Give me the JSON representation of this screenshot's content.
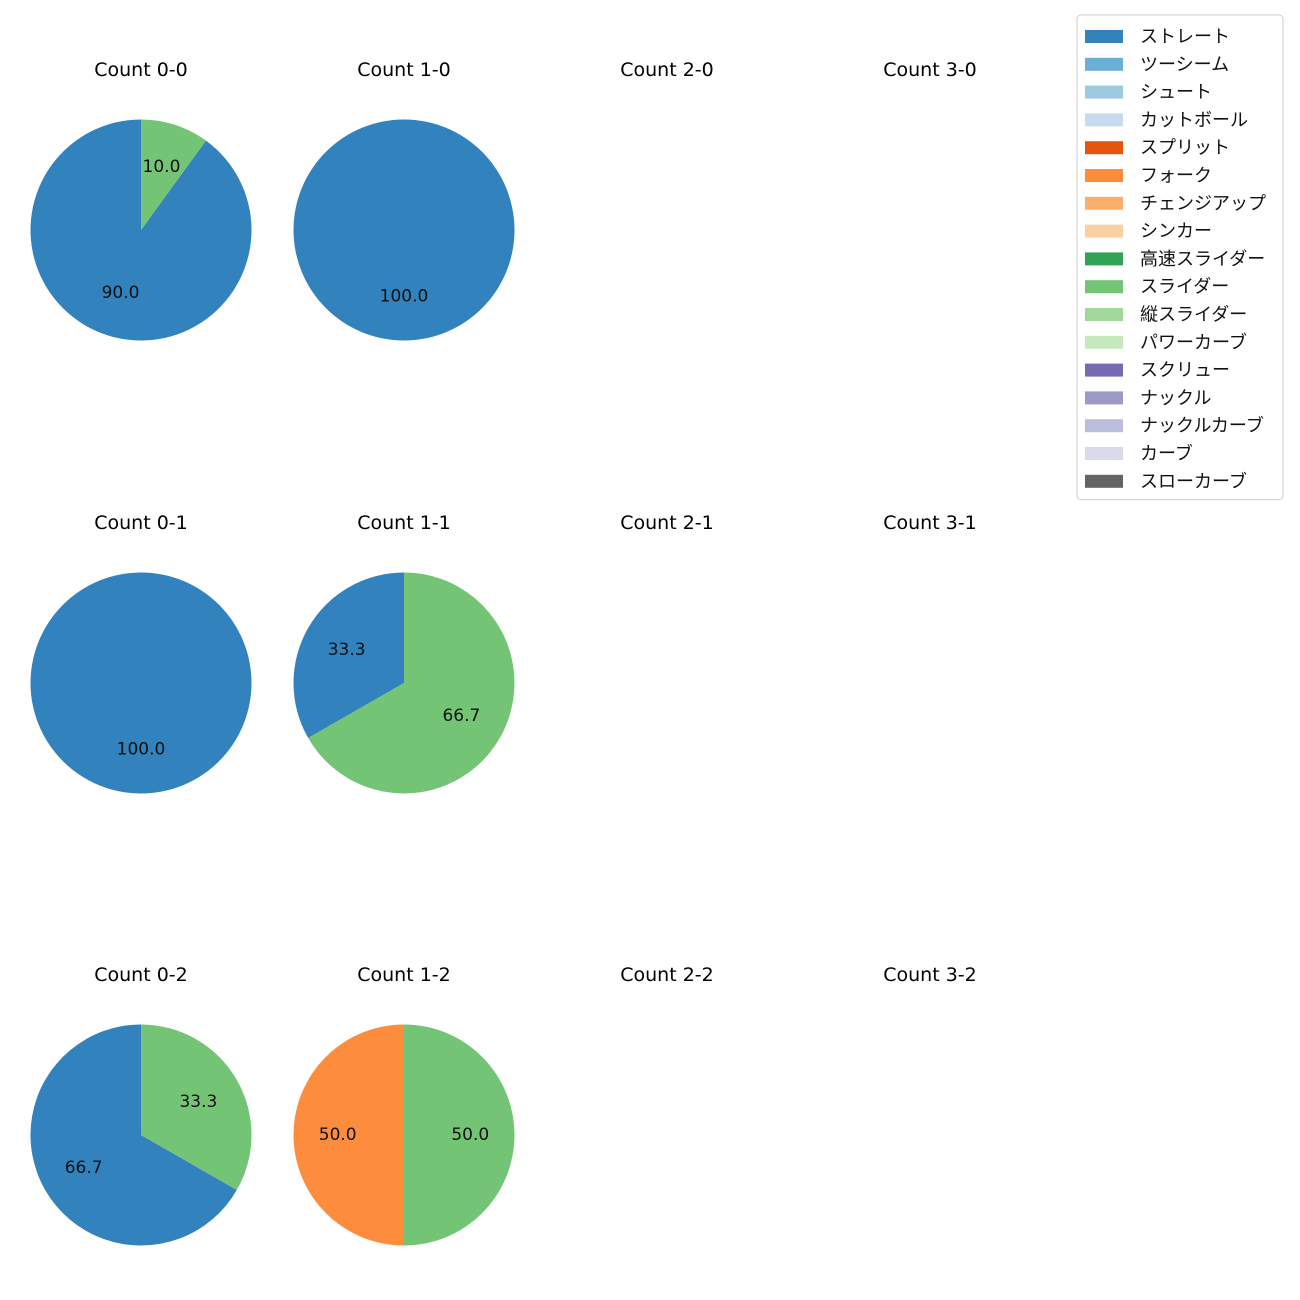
{
  "chart_data": {
    "type": "pie",
    "legend": {
      "placement": "top-right",
      "entries": [
        {
          "name": "ストレート",
          "color": "#3182bd"
        },
        {
          "name": "ツーシーム",
          "color": "#6baed6"
        },
        {
          "name": "シュート",
          "color": "#9ecae1"
        },
        {
          "name": "カットボール",
          "color": "#c6dbef"
        },
        {
          "name": "スプリット",
          "color": "#e6550d"
        },
        {
          "name": "フォーク",
          "color": "#fd8d3c"
        },
        {
          "name": "チェンジアップ",
          "color": "#fdae6b"
        },
        {
          "name": "シンカー",
          "color": "#fdd0a2"
        },
        {
          "name": "高速スライダー",
          "color": "#31a354"
        },
        {
          "name": "スライダー",
          "color": "#74c476"
        },
        {
          "name": "縦スライダー",
          "color": "#a1d99b"
        },
        {
          "name": "パワーカーブ",
          "color": "#c7e9c0"
        },
        {
          "name": "スクリュー",
          "color": "#756bb1"
        },
        {
          "name": "ナックル",
          "color": "#9e9ac8"
        },
        {
          "name": "ナックルカーブ",
          "color": "#bcbddc"
        },
        {
          "name": "カーブ",
          "color": "#dadaeb"
        },
        {
          "name": "スローカーブ",
          "color": "#636363"
        }
      ]
    },
    "panels": [
      {
        "title": "Count 0-0",
        "slices": [
          {
            "label": "ストレート",
            "value": 90.0
          },
          {
            "label": "スライダー",
            "value": 10.0
          }
        ]
      },
      {
        "title": "Count 1-0",
        "slices": [
          {
            "label": "ストレート",
            "value": 100.0
          }
        ]
      },
      {
        "title": "Count 2-0",
        "slices": []
      },
      {
        "title": "Count 3-0",
        "slices": []
      },
      {
        "title": "Count 0-1",
        "slices": [
          {
            "label": "ストレート",
            "value": 100.0
          }
        ]
      },
      {
        "title": "Count 1-1",
        "slices": [
          {
            "label": "ストレート",
            "value": 33.3
          },
          {
            "label": "スライダー",
            "value": 66.7
          }
        ]
      },
      {
        "title": "Count 2-1",
        "slices": []
      },
      {
        "title": "Count 3-1",
        "slices": []
      },
      {
        "title": "Count 0-2",
        "slices": [
          {
            "label": "ストレート",
            "value": 66.7
          },
          {
            "label": "スライダー",
            "value": 33.3
          }
        ]
      },
      {
        "title": "Count 1-2",
        "slices": [
          {
            "label": "フォーク",
            "value": 50.0
          },
          {
            "label": "スライダー",
            "value": 50.0
          }
        ]
      },
      {
        "title": "Count 2-2",
        "slices": []
      },
      {
        "title": "Count 3-2",
        "slices": []
      }
    ]
  }
}
